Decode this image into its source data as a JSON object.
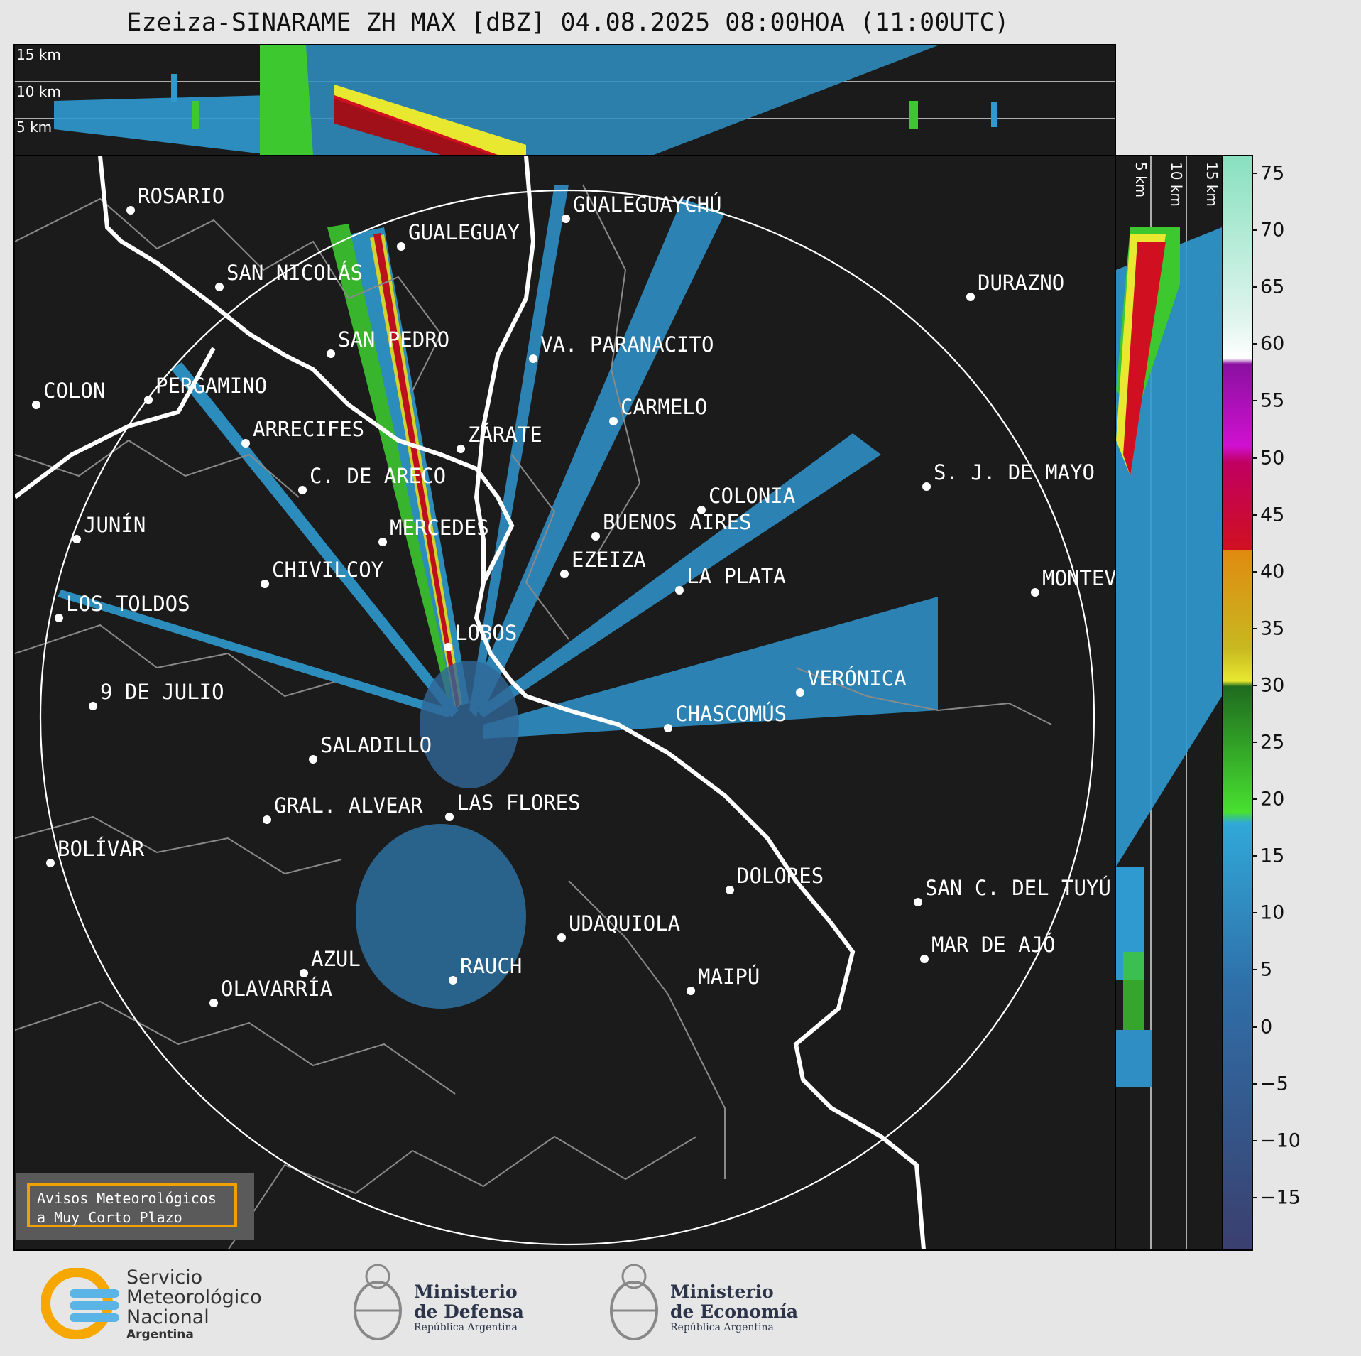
{
  "title": "Ezeiza-SINARAME ZH MAX [dBZ] 04.08.2025 08:00HOA (11:00UTC)",
  "top_panel": {
    "altitudes": [
      "15 km",
      "10 km",
      "5 km"
    ]
  },
  "side_panel": {
    "altitudes": [
      "5 km",
      "10 km",
      "15 km"
    ]
  },
  "cities": [
    {
      "name": "ROSARIO"
    },
    {
      "name": "GUALEGUAYCHÚ"
    },
    {
      "name": "GUALEGUAY"
    },
    {
      "name": "SAN NICOLÁS"
    },
    {
      "name": "DURAZNO"
    },
    {
      "name": "SAN PEDRO"
    },
    {
      "name": "VA. PARANACITO"
    },
    {
      "name": "COLON"
    },
    {
      "name": "PERGAMINO"
    },
    {
      "name": "CARMELO"
    },
    {
      "name": "ARRECIFES"
    },
    {
      "name": "ZÁRATE"
    },
    {
      "name": "S. J. DE MAYO"
    },
    {
      "name": "C. DE ARECO"
    },
    {
      "name": "COLONIA"
    },
    {
      "name": "JUNÍN"
    },
    {
      "name": "BUENOS AIRES"
    },
    {
      "name": "MERCEDES"
    },
    {
      "name": "EZEIZA"
    },
    {
      "name": "MONTEVIDEO"
    },
    {
      "name": "CHIVILCOY"
    },
    {
      "name": "LA PLATA"
    },
    {
      "name": "LOS TOLDOS"
    },
    {
      "name": "LOBOS"
    },
    {
      "name": "VERÓNICA"
    },
    {
      "name": "9 DE JULIO"
    },
    {
      "name": "CHASCOMÚS"
    },
    {
      "name": "SALADILLO"
    },
    {
      "name": "GRAL. ALVEAR"
    },
    {
      "name": "LAS FLORES"
    },
    {
      "name": "BOLÍVAR"
    },
    {
      "name": "DOLORES"
    },
    {
      "name": "SAN C. DEL TUYÚ"
    },
    {
      "name": "UDAQUIOLA"
    },
    {
      "name": "MAR DE AJÓ"
    },
    {
      "name": "AZUL"
    },
    {
      "name": "RAUCH"
    },
    {
      "name": "MAIPÚ"
    },
    {
      "name": "OLAVARRÍA"
    }
  ],
  "colorbar": {
    "ticks": [
      "75",
      "70",
      "65",
      "60",
      "55",
      "50",
      "45",
      "40",
      "35",
      "30",
      "25",
      "20",
      "15",
      "10",
      "5",
      "0",
      "−5",
      "−10",
      "−15"
    ],
    "colors": {
      "deep": "#3a3f6e",
      "blue": "#2f6fa8",
      "cyan": "#30a8d8",
      "green": "#48e030",
      "dkgreen": "#1f6b1f",
      "yellow": "#e8e830",
      "orange": "#e08a10",
      "red": "#d01020",
      "magenta": "#d010d0",
      "purple": "#8a10a0",
      "white": "#ffffff",
      "mint": "#88e0c0"
    }
  },
  "avisos": {
    "line1": "Avisos Meteorológicos",
    "line2": "a Muy Corto Plazo"
  },
  "logos": {
    "smn": {
      "line1": "Servicio",
      "line2": "Meteorológico",
      "line3": "Nacional",
      "line4": "Argentina"
    },
    "defensa": {
      "line1": "Ministerio",
      "line2": "de Defensa",
      "line3": "República Argentina"
    },
    "economia": {
      "line1": "Ministerio",
      "line2": "de Economía",
      "line3": "República Argentina"
    }
  }
}
